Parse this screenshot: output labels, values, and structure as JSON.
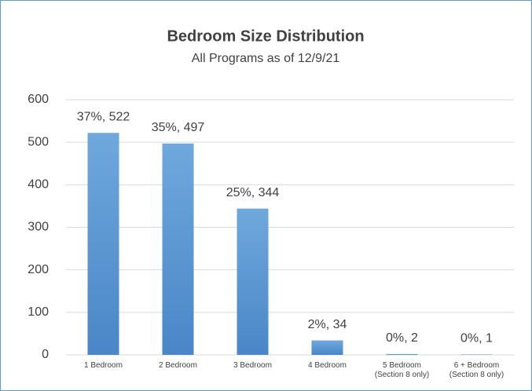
{
  "chart_data": {
    "type": "bar",
    "title": "Bedroom Size Distribution",
    "subtitle": "All Programs as of 12/9/21",
    "categories": [
      "1 Bedroom",
      "2 Bedroom",
      "3 Bedroom",
      "4 Bedroom",
      "5 Bedroom\n(Section 8 only)",
      "6 + Bedroom\n(Section 8 only)"
    ],
    "values": [
      522,
      497,
      344,
      34,
      2,
      1
    ],
    "value_labels": [
      "37%, 522",
      "35%, 497",
      "25%, 344",
      "2%, 34",
      "0%, 2",
      "0%, 1"
    ],
    "color": "#5b9bd5",
    "ylim": [
      0,
      600
    ],
    "yticks": [
      0,
      100,
      200,
      300,
      400,
      500,
      600
    ],
    "grid": true
  }
}
